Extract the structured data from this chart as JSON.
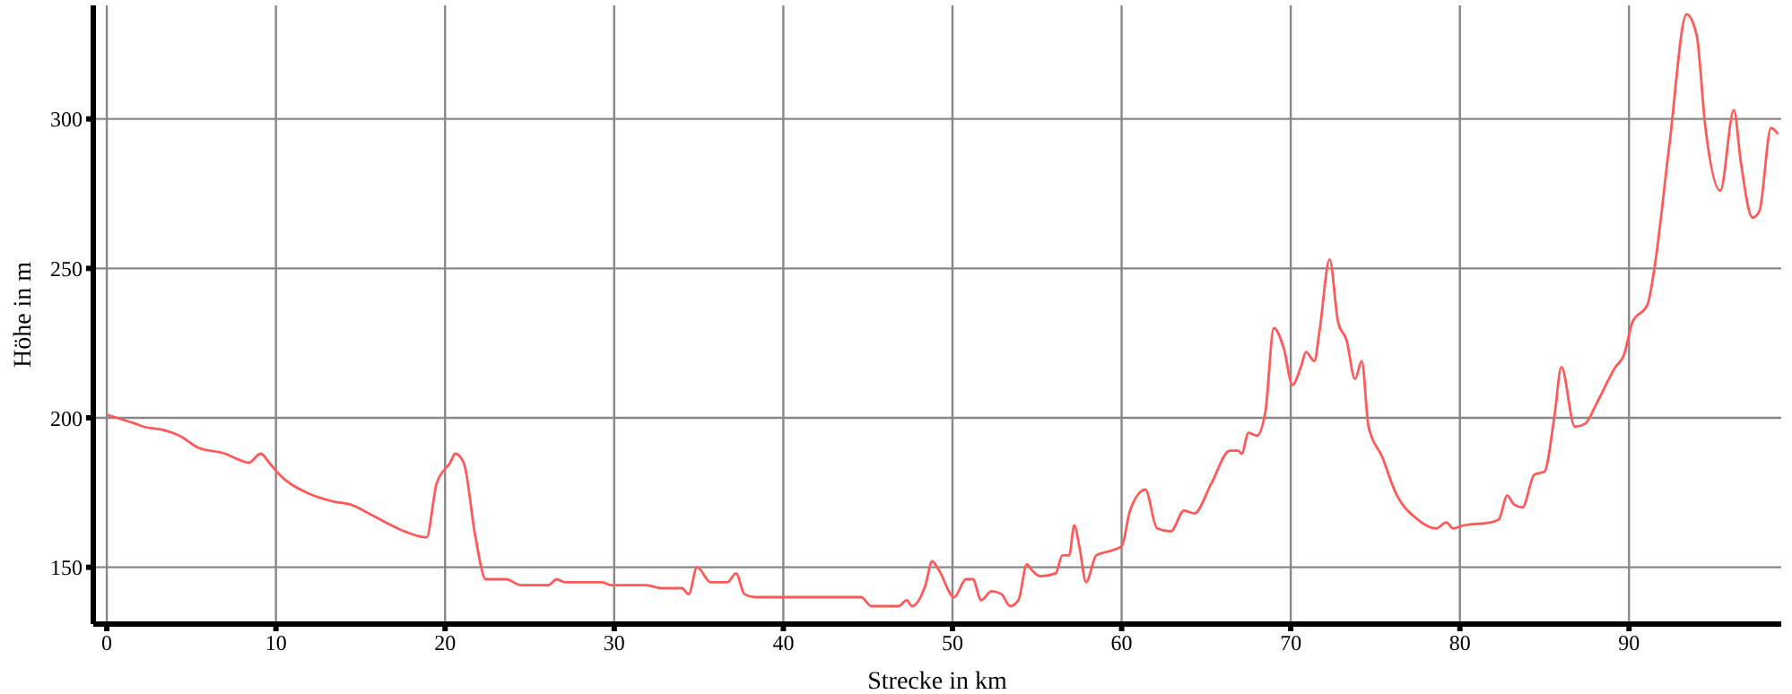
{
  "chart_data": {
    "type": "line",
    "xlabel": "Strecke in km",
    "ylabel": "Höhe in m",
    "xlim": [
      -0.8,
      99
    ],
    "ylim": [
      131,
      338
    ],
    "xticks": [
      0,
      10,
      20,
      30,
      40,
      50,
      60,
      70,
      80,
      90
    ],
    "yticks": [
      150,
      200,
      250,
      300
    ],
    "grid": true,
    "marker": "none",
    "line_style": "solid",
    "series": [
      {
        "color": "#ff5a5a",
        "x": [
          0,
          0.6,
          1.7,
          2.2,
          3.3,
          4.3,
          5.4,
          7,
          7.8,
          8.4,
          9.1,
          9.6,
          10.2,
          11.8,
          13.4,
          14.4,
          15.5,
          16.5,
          17.6,
          18.9,
          19.5,
          20.3,
          20.6,
          21.1,
          21.8,
          22.4,
          23.6,
          24.5,
          26.1,
          26.6,
          27.1,
          29.3,
          29.8,
          31.9,
          32.8,
          34,
          34.4,
          34.9,
          35.7,
          36.7,
          37.2,
          37.7,
          38.3,
          38.8,
          44.6,
          45.2,
          46.8,
          47.3,
          47.6,
          48.4,
          48.8,
          49.2,
          50.1,
          50.8,
          51.2,
          51.7,
          52.3,
          52.9,
          53.4,
          53.9,
          54.4,
          54.7,
          55.2,
          56.1,
          56.5,
          56.9,
          57.2,
          57.5,
          57.9,
          58.5,
          59,
          60,
          60.5,
          61.4,
          62.1,
          62.9,
          63.7,
          64.3,
          65.3,
          66.4,
          66.9,
          67.1,
          67.5,
          68,
          68.5,
          69,
          69.6,
          70.1,
          70.6,
          70.9,
          71.4,
          71.7,
          72.3,
          72.8,
          73.3,
          73.8,
          74.2,
          74.6,
          75.4,
          76.2,
          77.5,
          78.6,
          79.2,
          79.6,
          80.2,
          81.8,
          82.3,
          82.8,
          83.2,
          83.7,
          84.4,
          85,
          85.6,
          86,
          86.8,
          87.4,
          88.1,
          89.2,
          89.7,
          90.2,
          91.1,
          91.5,
          92.4,
          93.4,
          94,
          94.5,
          95.4,
          96.2,
          96.6,
          97.3,
          97.7,
          98.4,
          98.8
        ],
        "values": [
          201,
          200,
          198,
          197,
          196,
          194,
          190,
          188,
          186,
          185,
          188,
          185,
          181,
          175,
          172,
          171,
          168,
          165,
          162,
          160,
          178,
          185,
          188,
          185,
          160,
          146,
          146,
          144,
          144,
          146,
          145,
          145,
          144,
          144,
          143,
          143,
          141,
          150,
          145,
          145,
          148,
          141,
          140,
          140,
          140,
          137,
          137,
          139,
          137,
          144,
          152,
          149,
          140,
          146,
          146,
          139,
          142,
          141,
          137,
          139,
          151,
          149,
          147,
          148,
          154,
          154,
          164,
          157,
          145,
          154,
          155,
          157,
          169,
          176,
          163,
          162,
          169,
          168,
          178,
          189,
          189,
          188,
          195,
          194,
          202,
          230,
          223,
          211,
          217,
          222,
          219,
          229,
          253,
          232,
          226,
          213,
          219,
          197,
          187,
          175,
          166,
          163,
          165,
          163,
          164,
          165,
          166,
          174,
          171,
          170,
          181,
          182,
          201,
          217,
          197,
          198,
          205,
          217,
          221,
          232,
          238,
          250,
          292,
          335,
          328,
          298,
          276,
          303,
          286,
          267,
          269,
          297,
          295
        ]
      }
    ]
  }
}
